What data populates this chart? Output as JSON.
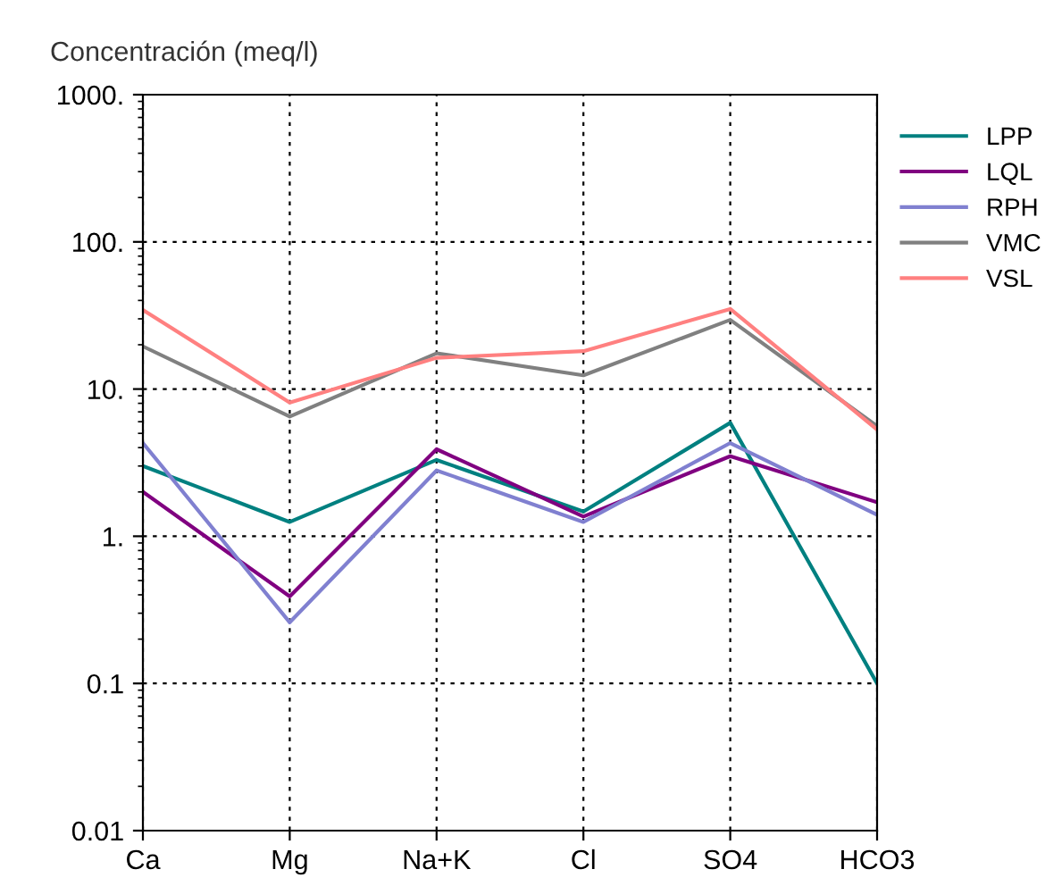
{
  "chart_data": {
    "type": "line",
    "ylabel": "Concentración (meq/l)",
    "categories": [
      "Ca",
      "Mg",
      "Na+K",
      "Cl",
      "SO4",
      "HCO3"
    ],
    "series": [
      {
        "name": "LPP",
        "color": "#008080",
        "values": [
          3.0,
          1.25,
          3.3,
          1.47,
          5.9,
          0.1
        ]
      },
      {
        "name": "LQL",
        "color": "#800080",
        "values": [
          2.0,
          0.39,
          3.9,
          1.36,
          3.5,
          1.7
        ]
      },
      {
        "name": "RPH",
        "color": "#8080d0",
        "values": [
          4.3,
          0.26,
          2.8,
          1.25,
          4.3,
          1.4
        ]
      },
      {
        "name": "VMC",
        "color": "#808080",
        "values": [
          19.5,
          6.5,
          17.5,
          12.4,
          29.5,
          5.6
        ]
      },
      {
        "name": "VSL",
        "color": "#ff8080",
        "values": [
          34.5,
          8.1,
          16.3,
          18.1,
          35,
          5.3
        ]
      }
    ],
    "log": "y",
    "ylim": [
      0.01,
      1000
    ],
    "yticks": [
      {
        "value": 0.01,
        "label": "0.01"
      },
      {
        "value": 0.1,
        "label": "0.1"
      },
      {
        "value": 1,
        "label": "1."
      },
      {
        "value": 10,
        "label": "10."
      },
      {
        "value": 100,
        "label": "100."
      },
      {
        "value": 1000,
        "label": "1000."
      }
    ],
    "grid": true,
    "legend": "right",
    "marker": "none",
    "line_style": "solid"
  }
}
